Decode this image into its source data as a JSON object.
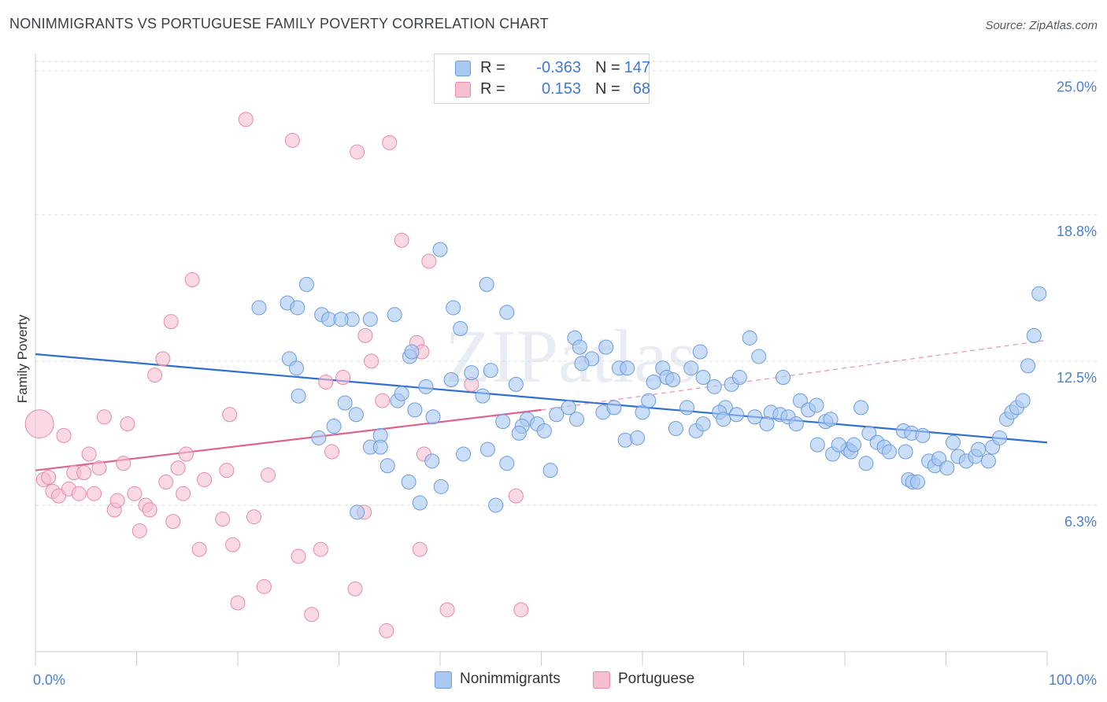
{
  "title": "NONIMMIGRANTS VS PORTUGUESE FAMILY POVERTY CORRELATION CHART",
  "source": "Source: ZipAtlas.com",
  "watermark": "ZIPatlas",
  "colors": {
    "blue_fill": "#a9c8f2",
    "blue_stroke": "#6b9bde",
    "blue_line": "#2f6fd0",
    "pink_fill": "#f6bfd0",
    "pink_stroke": "#e68aa8",
    "pink_line": "#e0628f",
    "grid": "#d9dde3",
    "tick_text": "#4a7fd0"
  },
  "legend": {
    "r_label": "R =",
    "n_label": "N =",
    "rows": [
      {
        "series": "Nonimmigrants",
        "r": "-0.363",
        "n": "147"
      },
      {
        "series": "Portuguese",
        "r": "0.153",
        "n": "68"
      }
    ]
  },
  "chart_data": {
    "type": "scatter",
    "title": "NONIMMIGRANTS VS PORTUGUESE FAMILY POVERTY CORRELATION CHART",
    "xlabel": "",
    "ylabel": "Family Poverty",
    "x_unit": "%",
    "y_unit": "%",
    "xlim": [
      0,
      100
    ],
    "ylim": [
      0,
      25.6
    ],
    "x_tick_labels": [
      "0.0%",
      "100.0%"
    ],
    "y_ticks": [
      6.3,
      12.5,
      18.8,
      25.0
    ],
    "y_tick_labels": [
      "6.3%",
      "12.5%",
      "18.8%",
      "25.0%"
    ],
    "grid": true,
    "legend_position": "top-center",
    "series": [
      {
        "name": "Nonimmigrants",
        "color": "#a9c8f2",
        "trend": {
          "x": [
            0,
            100
          ],
          "y": [
            12.8,
            9.0
          ]
        },
        "points": [
          [
            22.1,
            14.8
          ],
          [
            24.9,
            15.0
          ],
          [
            25.9,
            14.8
          ],
          [
            26.8,
            15.8
          ],
          [
            28.3,
            14.5
          ],
          [
            29.0,
            14.3
          ],
          [
            31.3,
            14.3
          ],
          [
            33.1,
            14.3
          ],
          [
            35.5,
            14.5
          ],
          [
            37.0,
            12.7
          ],
          [
            40.0,
            17.3
          ],
          [
            41.3,
            14.8
          ],
          [
            42.0,
            13.9
          ],
          [
            44.6,
            15.8
          ],
          [
            46.6,
            14.6
          ],
          [
            25.1,
            12.6
          ],
          [
            26.0,
            11.0
          ],
          [
            28.0,
            9.2
          ],
          [
            29.5,
            9.7
          ],
          [
            30.6,
            10.7
          ],
          [
            33.1,
            8.8
          ],
          [
            34.1,
            9.3
          ],
          [
            34.1,
            8.8
          ],
          [
            35.8,
            10.8
          ],
          [
            36.2,
            11.1
          ],
          [
            37.5,
            10.4
          ],
          [
            38.6,
            11.4
          ],
          [
            41.1,
            11.7
          ],
          [
            43.1,
            12.0
          ],
          [
            44.2,
            11.0
          ],
          [
            45.0,
            12.1
          ],
          [
            46.2,
            9.9
          ],
          [
            47.5,
            11.5
          ],
          [
            48.6,
            10.0
          ],
          [
            49.6,
            9.8
          ],
          [
            50.3,
            9.5
          ],
          [
            52.7,
            10.5
          ],
          [
            53.3,
            13.5
          ],
          [
            53.8,
            13.1
          ],
          [
            55.0,
            12.6
          ],
          [
            56.4,
            13.1
          ],
          [
            57.7,
            12.2
          ],
          [
            58.5,
            12.2
          ],
          [
            60.0,
            10.3
          ],
          [
            60.6,
            10.8
          ],
          [
            62.0,
            12.2
          ],
          [
            62.4,
            11.8
          ],
          [
            63.0,
            11.7
          ],
          [
            64.4,
            10.5
          ],
          [
            65.7,
            12.9
          ],
          [
            66.0,
            11.8
          ],
          [
            67.1,
            11.4
          ],
          [
            68.2,
            10.5
          ],
          [
            69.3,
            10.2
          ],
          [
            70.6,
            13.5
          ],
          [
            71.5,
            12.7
          ],
          [
            72.7,
            10.3
          ],
          [
            73.6,
            10.2
          ],
          [
            74.4,
            10.1
          ],
          [
            75.6,
            10.8
          ],
          [
            76.4,
            10.4
          ],
          [
            77.3,
            8.9
          ],
          [
            78.1,
            9.9
          ],
          [
            78.6,
            10.0
          ],
          [
            78.8,
            8.5
          ],
          [
            80.3,
            8.7
          ],
          [
            79.4,
            8.9
          ],
          [
            80.6,
            8.6
          ],
          [
            80.9,
            8.9
          ],
          [
            81.6,
            10.5
          ],
          [
            82.1,
            8.1
          ],
          [
            82.4,
            9.4
          ],
          [
            83.2,
            9.0
          ],
          [
            83.9,
            8.8
          ],
          [
            84.4,
            8.6
          ],
          [
            85.8,
            9.5
          ],
          [
            86.6,
            9.4
          ],
          [
            86.3,
            7.4
          ],
          [
            86.7,
            7.3
          ],
          [
            87.2,
            7.3
          ],
          [
            86.0,
            8.6
          ],
          [
            87.7,
            9.3
          ],
          [
            88.3,
            8.2
          ],
          [
            88.9,
            8.0
          ],
          [
            89.3,
            8.3
          ],
          [
            90.1,
            7.9
          ],
          [
            90.7,
            9.0
          ],
          [
            91.2,
            8.4
          ],
          [
            92.0,
            8.2
          ],
          [
            92.9,
            8.4
          ],
          [
            93.2,
            8.7
          ],
          [
            94.2,
            8.2
          ],
          [
            94.6,
            8.8
          ],
          [
            95.3,
            9.2
          ],
          [
            96.0,
            10.0
          ],
          [
            96.5,
            10.3
          ],
          [
            97.0,
            10.5
          ],
          [
            97.6,
            10.8
          ],
          [
            98.1,
            12.3
          ],
          [
            98.7,
            13.6
          ],
          [
            99.2,
            15.4
          ],
          [
            30.2,
            14.3
          ],
          [
            31.7,
            10.2
          ],
          [
            37.2,
            12.9
          ],
          [
            38.0,
            6.4
          ],
          [
            39.2,
            8.2
          ],
          [
            42.3,
            8.5
          ],
          [
            44.7,
            8.7
          ],
          [
            46.6,
            8.1
          ],
          [
            48.1,
            9.7
          ],
          [
            51.5,
            10.2
          ],
          [
            54.0,
            12.4
          ],
          [
            56.1,
            10.3
          ],
          [
            57.2,
            10.5
          ],
          [
            58.3,
            9.1
          ],
          [
            59.5,
            9.2
          ],
          [
            61.1,
            11.6
          ],
          [
            63.3,
            9.6
          ],
          [
            64.8,
            12.2
          ],
          [
            65.3,
            9.5
          ],
          [
            67.6,
            10.3
          ],
          [
            68.8,
            11.5
          ],
          [
            69.6,
            11.8
          ],
          [
            71.1,
            10.1
          ],
          [
            72.3,
            9.8
          ],
          [
            73.9,
            11.8
          ],
          [
            75.2,
            9.8
          ],
          [
            77.2,
            10.6
          ],
          [
            25.8,
            12.2
          ],
          [
            31.8,
            6.0
          ],
          [
            40.1,
            7.1
          ],
          [
            34.8,
            8.0
          ],
          [
            36.9,
            7.3
          ],
          [
            39.3,
            10.1
          ],
          [
            45.5,
            6.3
          ],
          [
            47.8,
            9.4
          ],
          [
            50.9,
            7.8
          ],
          [
            53.5,
            10.0
          ],
          [
            66.0,
            9.8
          ],
          [
            68.0,
            10.0
          ]
        ]
      },
      {
        "name": "Portuguese",
        "color": "#f6bfd0",
        "trend": {
          "x": [
            0,
            50
          ],
          "y": [
            7.8,
            10.4
          ],
          "dashed_to": [
            100,
            13.4
          ]
        },
        "points": [
          [
            0.4,
            9.8
          ],
          [
            0.8,
            7.4
          ],
          [
            1.3,
            7.5
          ],
          [
            1.7,
            6.9
          ],
          [
            2.3,
            6.7
          ],
          [
            2.8,
            9.3
          ],
          [
            3.3,
            7.0
          ],
          [
            3.8,
            7.7
          ],
          [
            4.3,
            6.8
          ],
          [
            4.8,
            7.7
          ],
          [
            5.3,
            8.5
          ],
          [
            5.8,
            6.8
          ],
          [
            6.3,
            7.9
          ],
          [
            6.8,
            10.1
          ],
          [
            7.8,
            6.1
          ],
          [
            8.1,
            6.5
          ],
          [
            8.7,
            8.1
          ],
          [
            9.1,
            9.8
          ],
          [
            9.8,
            6.8
          ],
          [
            10.3,
            5.2
          ],
          [
            10.9,
            6.3
          ],
          [
            11.3,
            6.1
          ],
          [
            11.8,
            11.9
          ],
          [
            12.6,
            12.6
          ],
          [
            12.9,
            7.3
          ],
          [
            13.4,
            14.2
          ],
          [
            13.6,
            5.6
          ],
          [
            14.1,
            7.9
          ],
          [
            14.6,
            6.8
          ],
          [
            14.9,
            8.5
          ],
          [
            15.5,
            16.0
          ],
          [
            16.2,
            4.4
          ],
          [
            16.7,
            7.4
          ],
          [
            18.5,
            5.7
          ],
          [
            18.9,
            7.8
          ],
          [
            19.2,
            10.2
          ],
          [
            19.5,
            4.6
          ],
          [
            20.0,
            2.1
          ],
          [
            20.8,
            22.9
          ],
          [
            21.6,
            5.8
          ],
          [
            22.6,
            2.8
          ],
          [
            23.0,
            7.6
          ],
          [
            25.4,
            22.0
          ],
          [
            26.0,
            4.1
          ],
          [
            27.3,
            1.6
          ],
          [
            28.2,
            4.4
          ],
          [
            28.7,
            11.6
          ],
          [
            29.3,
            8.6
          ],
          [
            30.4,
            11.8
          ],
          [
            31.6,
            2.7
          ],
          [
            31.8,
            21.5
          ],
          [
            32.5,
            6.0
          ],
          [
            32.6,
            13.6
          ],
          [
            33.2,
            12.5
          ],
          [
            34.3,
            10.8
          ],
          [
            34.7,
            0.9
          ],
          [
            35.0,
            21.9
          ],
          [
            36.2,
            17.7
          ],
          [
            37.7,
            13.3
          ],
          [
            38.0,
            4.4
          ],
          [
            38.4,
            8.5
          ],
          [
            38.9,
            16.8
          ],
          [
            40.7,
            1.8
          ],
          [
            43.1,
            11.5
          ],
          [
            47.5,
            6.7
          ],
          [
            48.0,
            1.8
          ],
          [
            38.2,
            12.9
          ]
        ]
      }
    ]
  },
  "bottom_legend": [
    "Nonimmigrants",
    "Portuguese"
  ]
}
